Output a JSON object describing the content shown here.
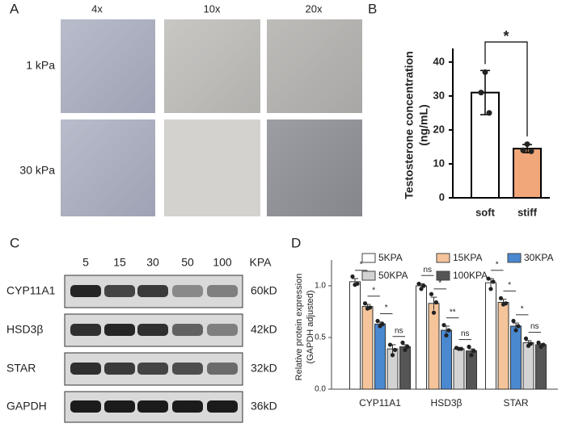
{
  "panel_a": {
    "label": "A",
    "columns": [
      "4x",
      "10x",
      "20x"
    ],
    "rows": [
      "1 kPa",
      "30 kPa"
    ]
  },
  "panel_c": {
    "label": "C",
    "lanes": [
      "5",
      "15",
      "30",
      "50",
      "100"
    ],
    "lane_unit": "KPA",
    "rows": [
      {
        "name": "CYP11A1",
        "size": "60kD"
      },
      {
        "name": "HSD3β",
        "size": "42kD"
      },
      {
        "name": "STAR",
        "size": "32kD"
      },
      {
        "name": "GAPDH",
        "size": "36kD"
      }
    ]
  },
  "chart_data": [
    {
      "panel_label": "B",
      "type": "bar",
      "y_label": [
        "Testosterone concentration",
        "(ng/mL)"
      ],
      "categories": [
        "soft",
        "stiff"
      ],
      "values": [
        31,
        14.5
      ],
      "errors": [
        6.5,
        1.2
      ],
      "points": [
        [
          37,
          31,
          25
        ],
        [
          15.8,
          14,
          13.7
        ]
      ],
      "colors": [
        "#ffffff",
        "#f2a77a"
      ],
      "ylim": [
        0,
        44
      ],
      "yticks": [
        0,
        10,
        20,
        30,
        40
      ],
      "significance": "*"
    },
    {
      "panel_label": "D",
      "type": "grouped_bar",
      "y_label": [
        "Relative protein expression",
        "(GAPDH adjusted)"
      ],
      "categories": [
        "CYP11A1",
        "HSD3β",
        "STAR"
      ],
      "series": [
        {
          "name": "5KPA",
          "color": "#ffffff",
          "values": [
            1.04,
            1.0,
            1.03
          ],
          "errors": [
            0.03,
            0.02,
            0.04
          ],
          "points": [
            [
              1.09,
              1.02,
              1.01
            ],
            [
              1.02,
              1.0,
              0.97
            ],
            [
              1.07,
              1.04,
              0.97
            ]
          ]
        },
        {
          "name": "15KPA",
          "color": "#f5c49a",
          "values": [
            0.8,
            0.83,
            0.84
          ],
          "errors": [
            0.02,
            0.06,
            0.03
          ],
          "points": [
            [
              0.83,
              0.79,
              0.78
            ],
            [
              0.92,
              0.84,
              0.74
            ],
            [
              0.88,
              0.83,
              0.82
            ]
          ]
        },
        {
          "name": "30KPA",
          "color": "#4a88d0",
          "values": [
            0.63,
            0.57,
            0.61
          ],
          "errors": [
            0.02,
            0.04,
            0.03
          ],
          "points": [
            [
              0.66,
              0.63,
              0.61
            ],
            [
              0.62,
              0.57,
              0.52
            ],
            [
              0.66,
              0.61,
              0.57
            ]
          ]
        },
        {
          "name": "50KPA",
          "color": "#d3d3d3",
          "values": [
            0.39,
            0.39,
            0.45
          ],
          "errors": [
            0.04,
            0.01,
            0.02
          ],
          "points": [
            [
              0.43,
              0.38,
              0.33
            ],
            [
              0.4,
              0.39,
              0.39
            ],
            [
              0.49,
              0.44,
              0.42
            ]
          ]
        },
        {
          "name": "100KPA",
          "color": "#555555",
          "values": [
            0.41,
            0.37,
            0.43
          ],
          "errors": [
            0.02,
            0.02,
            0.01
          ],
          "points": [
            [
              0.45,
              0.41,
              0.38
            ],
            [
              0.41,
              0.37,
              0.33
            ],
            [
              0.45,
              0.43,
              0.41
            ]
          ]
        }
      ],
      "comparisons": [
        [
          "*",
          "*",
          "*",
          "ns"
        ],
        [
          "ns",
          "*",
          "**",
          "ns"
        ],
        [
          "*",
          "*",
          "*",
          "ns"
        ]
      ],
      "ylim": [
        0,
        1.25
      ],
      "yticks": [
        {
          "value": 0,
          "label": "0.0"
        },
        {
          "value": 0.5,
          "label": "0.5"
        },
        {
          "value": 1,
          "label": "1.0"
        }
      ]
    }
  ]
}
